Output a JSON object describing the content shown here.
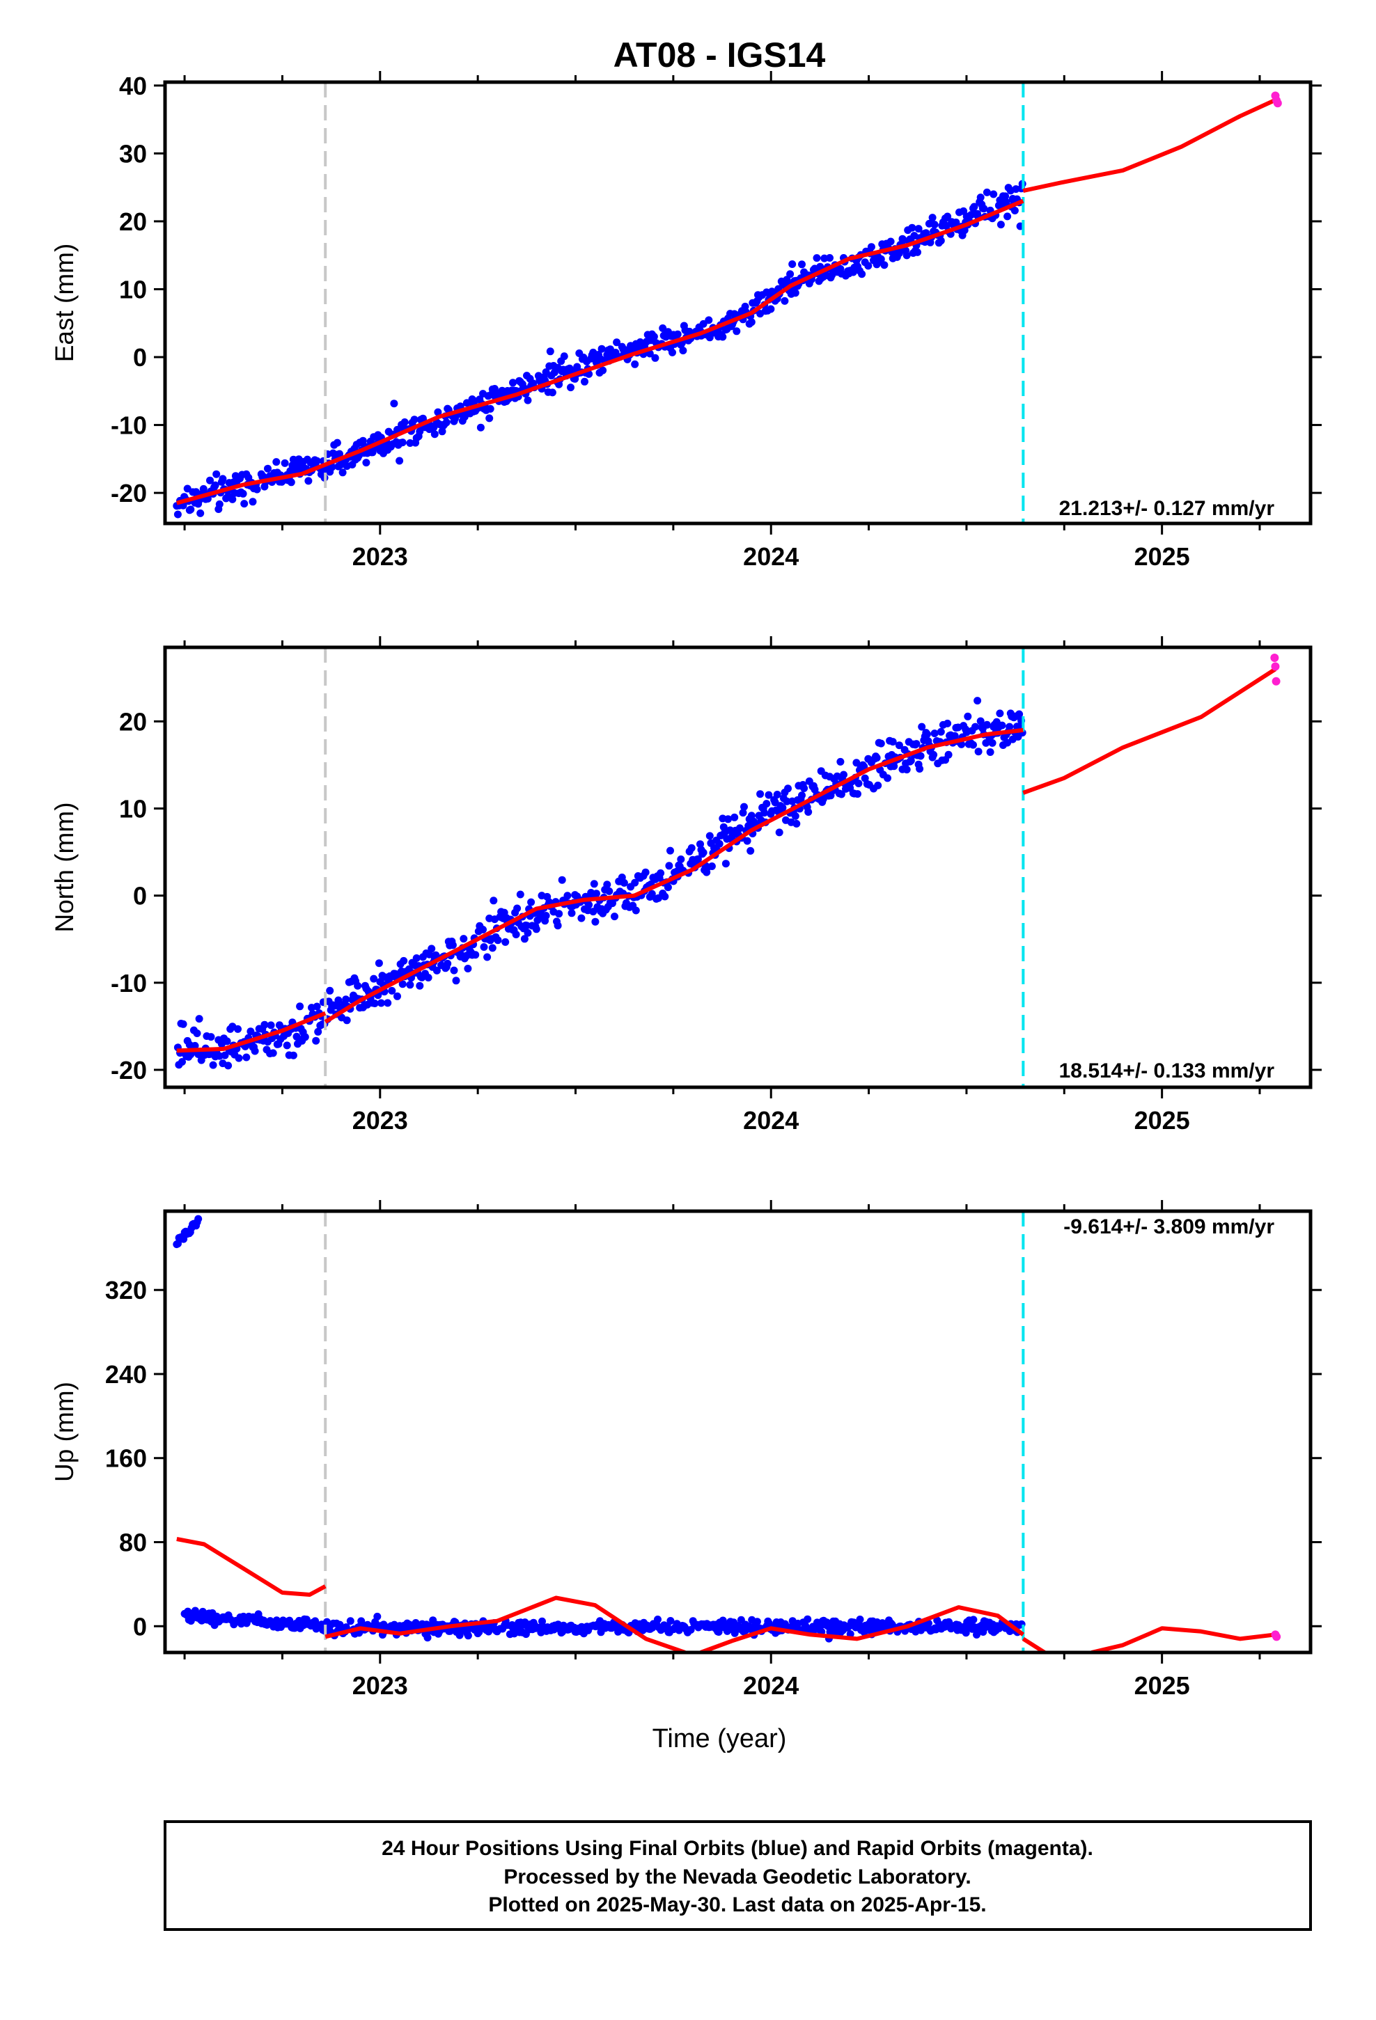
{
  "title": "AT08 - IGS14",
  "colors": {
    "final_orbits": "#0000ff",
    "rapid_orbits": "#ff1fd0",
    "model": "#ff0000",
    "equipment_change": "#c8c8c8",
    "earthquake": "#00e5f0"
  },
  "xlabel": "Time (year)",
  "footer": {
    "line1": "24 Hour Positions Using Final Orbits (blue) and Rapid Orbits (magenta).",
    "line2": "Processed by the Nevada Geodetic Laboratory.",
    "line3": "Plotted on 2025-May-30. Last data on 2025-Apr-15."
  },
  "chart_data": [
    {
      "type": "scatter",
      "ylabel": "East (mm)",
      "xlim": [
        2022.45,
        2025.38
      ],
      "ylim": [
        -24.5,
        40.5
      ],
      "xticks": [
        2023,
        2024,
        2025
      ],
      "yticks": [
        -20,
        -10,
        0,
        10,
        20,
        30,
        40
      ],
      "rate_label": "21.213+/- 0.127 mm/yr",
      "event_lines": [
        {
          "x": 2022.86,
          "kind": "equipment_change"
        },
        {
          "x": 2024.645,
          "kind": "earthquake"
        }
      ],
      "final_series": {
        "start": 2022.48,
        "end": 2024.645,
        "trend": [
          [
            2022.48,
            -21.5
          ],
          [
            2022.9,
            -15.0
          ],
          [
            2023.25,
            -7.0
          ],
          [
            2023.6,
            0.5
          ],
          [
            2023.9,
            5.0
          ],
          [
            2024.05,
            11.0
          ],
          [
            2024.3,
            15.5
          ],
          [
            2024.645,
            23.5
          ]
        ],
        "scatter_mm": 1.6
      },
      "rapid_points": [
        [
          2025.29,
          38.5
        ],
        [
          2025.293,
          37.8
        ],
        [
          2025.296,
          37.4
        ]
      ],
      "model_segments": [
        [
          [
            2022.48,
            -21.5
          ],
          [
            2022.65,
            -18.8
          ],
          [
            2022.8,
            -17.2
          ],
          [
            2022.95,
            -13.8
          ],
          [
            2023.15,
            -8.8
          ],
          [
            2023.35,
            -5.5
          ],
          [
            2023.5,
            -2.5
          ],
          [
            2023.65,
            0.5
          ],
          [
            2023.82,
            3.5
          ],
          [
            2023.95,
            6.5
          ],
          [
            2024.05,
            10.5
          ],
          [
            2024.2,
            14.5
          ],
          [
            2024.35,
            16.5
          ],
          [
            2024.5,
            19.5
          ],
          [
            2024.645,
            23.0
          ]
        ],
        [
          [
            2024.645,
            24.5
          ],
          [
            2024.75,
            25.8
          ],
          [
            2024.9,
            27.5
          ],
          [
            2025.05,
            31.0
          ],
          [
            2025.2,
            35.5
          ],
          [
            2025.295,
            38.0
          ]
        ]
      ]
    },
    {
      "type": "scatter",
      "ylabel": "North (mm)",
      "xlim": [
        2022.45,
        2025.38
      ],
      "ylim": [
        -22,
        28.5
      ],
      "xticks": [
        2023,
        2024,
        2025
      ],
      "yticks": [
        -20,
        -10,
        0,
        10,
        20
      ],
      "rate_label": "18.514+/- 0.133 mm/yr",
      "event_lines": [
        {
          "x": 2022.86,
          "kind": "equipment_change"
        },
        {
          "x": 2024.645,
          "kind": "earthquake"
        }
      ],
      "final_series": {
        "start": 2022.48,
        "end": 2024.645,
        "trend": [
          [
            2022.48,
            -17.5
          ],
          [
            2022.75,
            -16.0
          ],
          [
            2022.86,
            -13.5
          ],
          [
            2023.2,
            -6.5
          ],
          [
            2023.4,
            -1.5
          ],
          [
            2023.6,
            -0.5
          ],
          [
            2023.75,
            2.5
          ],
          [
            2024.0,
            9.5
          ],
          [
            2024.2,
            13.5
          ],
          [
            2024.4,
            17.5
          ],
          [
            2024.645,
            19.5
          ]
        ],
        "scatter_mm": 1.8
      },
      "rapid_points": [
        [
          2025.288,
          27.3
        ],
        [
          2025.29,
          26.3
        ],
        [
          2025.292,
          24.6
        ]
      ],
      "model_segments": [
        [
          [
            2022.48,
            -17.8
          ],
          [
            2022.6,
            -17.6
          ],
          [
            2022.75,
            -15.5
          ],
          [
            2022.86,
            -13.5
          ]
        ],
        [
          [
            2022.86,
            -14.5
          ],
          [
            2022.95,
            -12.0
          ],
          [
            2023.1,
            -8.5
          ],
          [
            2023.25,
            -5.0
          ],
          [
            2023.4,
            -1.5
          ],
          [
            2023.52,
            -0.5
          ],
          [
            2023.65,
            0.0
          ],
          [
            2023.8,
            3.0
          ],
          [
            2023.95,
            7.5
          ],
          [
            2024.1,
            11.0
          ],
          [
            2024.25,
            14.5
          ],
          [
            2024.4,
            17.0
          ],
          [
            2024.55,
            18.5
          ],
          [
            2024.645,
            19.0
          ]
        ],
        [
          [
            2024.645,
            11.8
          ],
          [
            2024.75,
            13.5
          ],
          [
            2024.9,
            17.0
          ],
          [
            2025.1,
            20.5
          ],
          [
            2025.29,
            26.0
          ]
        ]
      ]
    },
    {
      "type": "scatter",
      "ylabel": "Up (mm)",
      "xlim": [
        2022.45,
        2025.38
      ],
      "ylim": [
        -25,
        395
      ],
      "xticks": [
        2023,
        2024,
        2025
      ],
      "yticks": [
        0,
        80,
        160,
        240,
        320
      ],
      "rate_label": "-9.614+/- 3.809 mm/yr",
      "event_lines": [
        {
          "x": 2022.86,
          "kind": "equipment_change"
        },
        {
          "x": 2024.645,
          "kind": "earthquake"
        }
      ],
      "outlier_cluster": {
        "start": 2022.48,
        "end": 2022.535,
        "y_from": 365,
        "y_to": 385
      },
      "final_series": {
        "start": 2022.5,
        "end": 2024.645,
        "trend": [
          [
            2022.5,
            10.0
          ],
          [
            2022.86,
            0.0
          ],
          [
            2022.87,
            -2.0
          ],
          [
            2024.645,
            0.0
          ]
        ],
        "scatter_mm": 4.5
      },
      "rapid_points": [
        [
          2025.29,
          -8.0
        ],
        [
          2025.293,
          -10.0
        ]
      ],
      "model_segments": [
        [
          [
            2022.48,
            83
          ],
          [
            2022.55,
            78
          ],
          [
            2022.65,
            55
          ],
          [
            2022.75,
            32
          ],
          [
            2022.82,
            30
          ],
          [
            2022.86,
            38
          ]
        ],
        [
          [
            2022.86,
            -10
          ],
          [
            2022.95,
            -2
          ],
          [
            2023.05,
            -7
          ],
          [
            2023.18,
            0
          ],
          [
            2023.3,
            5
          ],
          [
            2023.45,
            27
          ],
          [
            2023.55,
            20
          ],
          [
            2023.68,
            -12
          ],
          [
            2023.78,
            -25
          ]
        ],
        [
          [
            2023.82,
            -25
          ],
          [
            2023.9,
            -14
          ],
          [
            2024.0,
            -2
          ],
          [
            2024.1,
            -8
          ],
          [
            2024.22,
            -12
          ],
          [
            2024.35,
            0
          ],
          [
            2024.48,
            18
          ],
          [
            2024.58,
            10
          ],
          [
            2024.645,
            -8
          ]
        ],
        [
          [
            2024.645,
            -12
          ],
          [
            2024.7,
            -25
          ]
        ],
        [
          [
            2024.82,
            -25
          ],
          [
            2024.9,
            -18
          ],
          [
            2025.0,
            -2
          ],
          [
            2025.1,
            -5
          ],
          [
            2025.2,
            -12
          ],
          [
            2025.29,
            -8
          ]
        ]
      ]
    }
  ]
}
